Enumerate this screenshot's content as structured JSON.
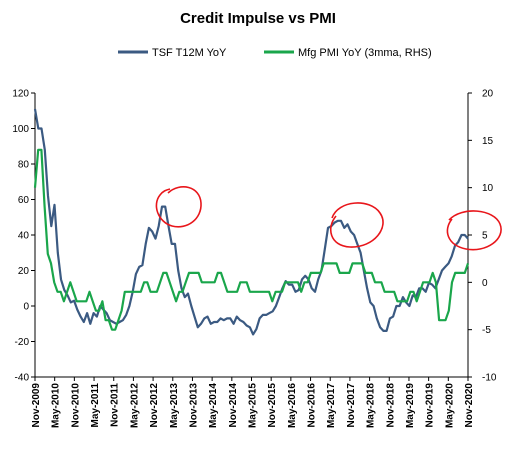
{
  "chart_data": {
    "type": "line",
    "title": "Credit Impulse vs PMI",
    "legend_position": "top",
    "grid": false,
    "colors": {
      "tsf": "#3b5a82",
      "pmi": "#1aa64b",
      "annotation": "#e8161b"
    },
    "x_tick_labels": [
      "Nov-2009",
      "May-2010",
      "Nov-2010",
      "May-2011",
      "Nov-2011",
      "May-2012",
      "Nov-2012",
      "May-2013",
      "Nov-2013",
      "May-2014",
      "Nov-2014",
      "May-2015",
      "Nov-2015",
      "May-2016",
      "Nov-2016",
      "May-2017",
      "Nov-2017",
      "May-2018",
      "Nov-2018",
      "May-2019",
      "Nov-2019",
      "May-2020",
      "Nov-2020"
    ],
    "y_left": {
      "ylim": [
        -40,
        120
      ],
      "ticks": [
        -40,
        -20,
        0,
        20,
        40,
        60,
        80,
        100,
        120
      ]
    },
    "y_right": {
      "ylim": [
        -10,
        20
      ],
      "ticks": [
        -10,
        -5,
        0,
        5,
        10,
        15,
        20
      ]
    },
    "series": [
      {
        "name": "TSF T12M YoY",
        "axis": "left",
        "values": [
          111,
          100,
          100,
          88,
          62,
          45,
          57,
          30,
          15,
          9,
          6,
          2,
          3,
          -2,
          -6,
          -9,
          -4,
          -10,
          -4,
          -6,
          0,
          -2,
          -4,
          -8,
          -9,
          -10,
          -9,
          -8,
          -5,
          0,
          8,
          18,
          22,
          23,
          35,
          44,
          42,
          38,
          45,
          56,
          56,
          45,
          35,
          35,
          20,
          10,
          5,
          7,
          0,
          -6,
          -12,
          -10,
          -7,
          -6,
          -10,
          -9,
          -9,
          -7,
          -8,
          -7,
          -7,
          -10,
          -6,
          -8,
          -9,
          -11,
          -12,
          -16,
          -13,
          -7,
          -5,
          -5,
          -4,
          -3,
          0,
          5,
          10,
          14,
          12,
          12,
          8,
          9,
          15,
          17,
          15,
          10,
          8,
          15,
          20,
          32,
          44,
          45,
          47,
          48,
          48,
          44,
          46,
          42,
          40,
          35,
          30,
          20,
          10,
          2,
          0,
          -7,
          -12,
          -14,
          -14,
          -7,
          -6,
          0,
          0,
          5,
          2,
          0,
          6,
          5,
          10,
          10,
          8,
          13,
          12,
          10,
          15,
          20,
          22,
          24,
          28,
          34,
          36,
          40,
          40,
          38
        ]
      },
      {
        "name": "Mfg PMI YoY (3mma, RHS)",
        "axis": "right",
        "values": [
          10,
          14,
          14,
          8,
          3,
          2,
          0,
          -1,
          -1,
          -2,
          -1,
          0,
          -1,
          -2,
          -2,
          -2,
          -2,
          -1,
          -2,
          -3,
          -3,
          -2,
          -4,
          -4,
          -5,
          -5,
          -4,
          -3,
          -1,
          -1,
          -1,
          -1,
          -1,
          -1,
          0,
          0,
          -1,
          -1,
          -1,
          0,
          1,
          1,
          0,
          -1,
          -2,
          -1,
          -1,
          0,
          1,
          1,
          1,
          1,
          0,
          0,
          0,
          0,
          0,
          1,
          1,
          0,
          -1,
          -1,
          -1,
          -1,
          0,
          0,
          0,
          -1,
          -1,
          -1,
          -1,
          -1,
          -1,
          -1,
          -2,
          -1,
          -1,
          -1,
          0,
          0,
          0,
          0,
          0,
          -1,
          0,
          0,
          1,
          1,
          1,
          1,
          2,
          2,
          2,
          2,
          2,
          1,
          1,
          1,
          1,
          2,
          2,
          2,
          2,
          1,
          1,
          1,
          0,
          0,
          0,
          -1,
          -1,
          -1,
          -1,
          -2,
          -2,
          -2,
          -2,
          -1,
          -1,
          -2,
          -1,
          0,
          0,
          0,
          1,
          0,
          -4,
          -4,
          -4,
          -3,
          0,
          1,
          1,
          1,
          1,
          2
        ]
      }
    ]
  }
}
